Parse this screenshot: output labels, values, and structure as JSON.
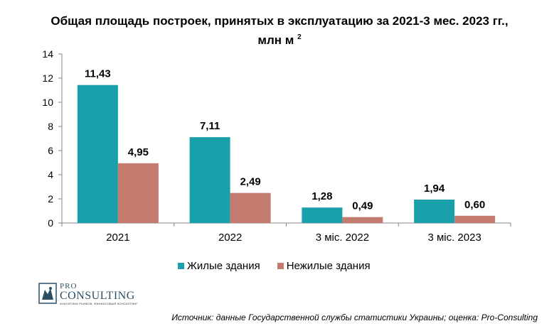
{
  "title_line1": "Общая площадь построек, принятых в эксплуатацию за 2021-3 мес. 2023 гг.,",
  "title_line2": "млн м",
  "title_sup": "2",
  "chart_data": {
    "type": "bar",
    "categories": [
      "2021",
      "2022",
      "3 міс. 2022",
      "3 міс. 2023"
    ],
    "series": [
      {
        "name": "Жилые здания",
        "values": [
          11.43,
          7.11,
          1.28,
          1.94
        ],
        "labels": [
          "11,43",
          "7,11",
          "1,28",
          "1,94"
        ],
        "color": "#1aa0aa"
      },
      {
        "name": "Нежилые здания",
        "values": [
          4.95,
          2.49,
          0.49,
          0.6
        ],
        "labels": [
          "4,95",
          "2,49",
          "0,49",
          "0,60"
        ],
        "color": "#c47b70"
      }
    ],
    "ylim": [
      0,
      14
    ],
    "yticks": [
      "0",
      "2",
      "4",
      "6",
      "8",
      "10",
      "12",
      "14"
    ],
    "grid": false,
    "legend": "bottom"
  },
  "logo": {
    "pro": "PRO",
    "consulting": "CONSULTING",
    "tagline": "АНАЛИТИКА РЫНКОВ. ФИНАНСОВЫЙ КОНСАЛТИНГ"
  },
  "source": "Источник: данные Государственной службы статистики Украины; оценка: Pro-Consulting"
}
